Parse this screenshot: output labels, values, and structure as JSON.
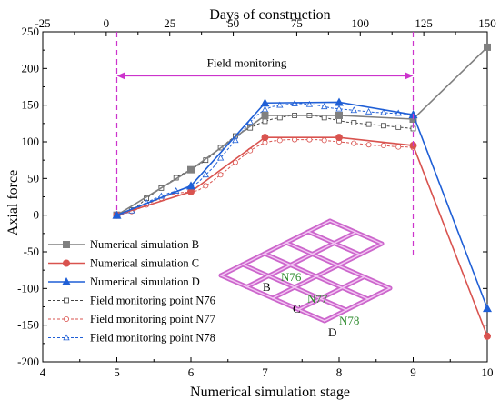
{
  "chart_data": {
    "type": "line",
    "title": "",
    "xlabel": "Numerical simulation stage",
    "ylabel": "Axial force",
    "x2label": "Days of construction",
    "xlim": [
      4,
      10
    ],
    "ylim": [
      -200,
      250
    ],
    "x2lim": [
      -25,
      150
    ],
    "xticks": [
      "4",
      "5",
      "6",
      "7",
      "8",
      "9",
      "10"
    ],
    "yticks": [
      "-200",
      "-150",
      "-100",
      "-50",
      "0",
      "50",
      "100",
      "150",
      "200",
      "250"
    ],
    "x2ticks": [
      "-25",
      "0",
      "25",
      "50",
      "75",
      "100",
      "125",
      "150"
    ],
    "grid": false,
    "legend_position": "bottom-left",
    "series": [
      {
        "name": "Numerical simulation  B",
        "kind": "simulation",
        "color": "#808080",
        "marker": "square",
        "x": [
          5,
          6,
          7,
          8,
          9,
          10
        ],
        "y": [
          0,
          62,
          136,
          136,
          131,
          229
        ]
      },
      {
        "name": "Numerical simulation  C",
        "kind": "simulation",
        "color": "#d9534f",
        "marker": "circle",
        "x": [
          5,
          6,
          7,
          8,
          9,
          10
        ],
        "y": [
          0,
          32,
          106,
          106,
          95,
          -165
        ]
      },
      {
        "name": "Numerical simulation  D",
        "kind": "simulation",
        "color": "#1f5fd6",
        "marker": "triangle",
        "x": [
          5,
          6,
          7,
          8,
          9,
          10
        ],
        "y": [
          0,
          40,
          153,
          154,
          137,
          -127
        ]
      },
      {
        "name": "Field monitoring point N76",
        "kind": "monitoring",
        "color": "#444444",
        "marker": "square-open",
        "x": [
          5,
          5.1,
          5.2,
          5.3,
          5.4,
          5.5,
          5.6,
          5.7,
          5.8,
          5.9,
          6.0,
          6.1,
          6.2,
          6.3,
          6.4,
          6.5,
          6.6,
          6.7,
          6.8,
          6.9,
          7.0,
          7.1,
          7.2,
          7.3,
          7.4,
          7.5,
          7.6,
          7.7,
          7.8,
          7.9,
          8.0,
          8.1,
          8.2,
          8.3,
          8.4,
          8.5,
          8.6,
          8.7,
          8.8,
          8.9,
          9.0
        ],
        "y": [
          0,
          3,
          7,
          14,
          23,
          30,
          37,
          44,
          51,
          57,
          62,
          68,
          75,
          83,
          92,
          100,
          108,
          114,
          119,
          124,
          128,
          131,
          133,
          135,
          136,
          136,
          136,
          135,
          133,
          131,
          129,
          127,
          126,
          125,
          124,
          123,
          122,
          121,
          120,
          119,
          118
        ]
      },
      {
        "name": "Field monitoring point N77",
        "kind": "monitoring",
        "color": "#d9534f",
        "marker": "circle-open",
        "x": [
          5,
          5.1,
          5.2,
          5.3,
          5.4,
          5.5,
          5.6,
          5.7,
          5.8,
          5.9,
          6.0,
          6.1,
          6.2,
          6.3,
          6.4,
          6.5,
          6.6,
          6.7,
          6.8,
          6.9,
          7.0,
          7.1,
          7.2,
          7.3,
          7.4,
          7.5,
          7.6,
          7.7,
          7.8,
          7.9,
          8.0,
          8.1,
          8.2,
          8.3,
          8.4,
          8.5,
          8.6,
          8.7,
          8.8,
          8.9,
          9.0
        ],
        "y": [
          0,
          2,
          5,
          9,
          14,
          19,
          23,
          27,
          30,
          31,
          31,
          34,
          40,
          47,
          55,
          63,
          72,
          80,
          88,
          94,
          99,
          101,
          102,
          103,
          103,
          103,
          103,
          103,
          102,
          101,
          100,
          99,
          98,
          97,
          96,
          95,
          95,
          94,
          93,
          93,
          92
        ]
      },
      {
        "name": "Field monitoring point N78",
        "kind": "monitoring",
        "color": "#1f5fd6",
        "marker": "triangle-open",
        "x": [
          5,
          5.1,
          5.2,
          5.3,
          5.4,
          5.5,
          5.6,
          5.7,
          5.8,
          5.9,
          6.0,
          6.1,
          6.2,
          6.3,
          6.4,
          6.5,
          6.6,
          6.7,
          6.8,
          6.9,
          7.0,
          7.1,
          7.2,
          7.3,
          7.4,
          7.5,
          7.6,
          7.7,
          7.8,
          7.9,
          8.0,
          8.1,
          8.2,
          8.3,
          8.4,
          8.5,
          8.6,
          8.7,
          8.8,
          8.9,
          9.0
        ],
        "y": [
          0,
          2,
          6,
          11,
          17,
          22,
          26,
          30,
          33,
          36,
          38,
          45,
          55,
          65,
          78,
          90,
          102,
          115,
          127,
          137,
          144,
          148,
          150,
          151,
          152,
          152,
          151,
          150,
          148,
          146,
          145,
          144,
          143,
          142,
          141,
          140,
          140,
          139,
          139,
          138,
          138
        ]
      }
    ],
    "annotations": {
      "field_monitoring_label": "Field monitoring",
      "field_monitoring_start_x": 5,
      "field_monitoring_end_x": 9,
      "field_monitoring_y": 190,
      "guide_color": "#cc33cc",
      "inset_labels": {
        "B": "B",
        "C": "C",
        "D": "D",
        "N76": "N76",
        "N77": "N77",
        "N78": "N78"
      },
      "inset_color": "#cc66cc",
      "inset_label_color": "#2e8b2e"
    }
  }
}
